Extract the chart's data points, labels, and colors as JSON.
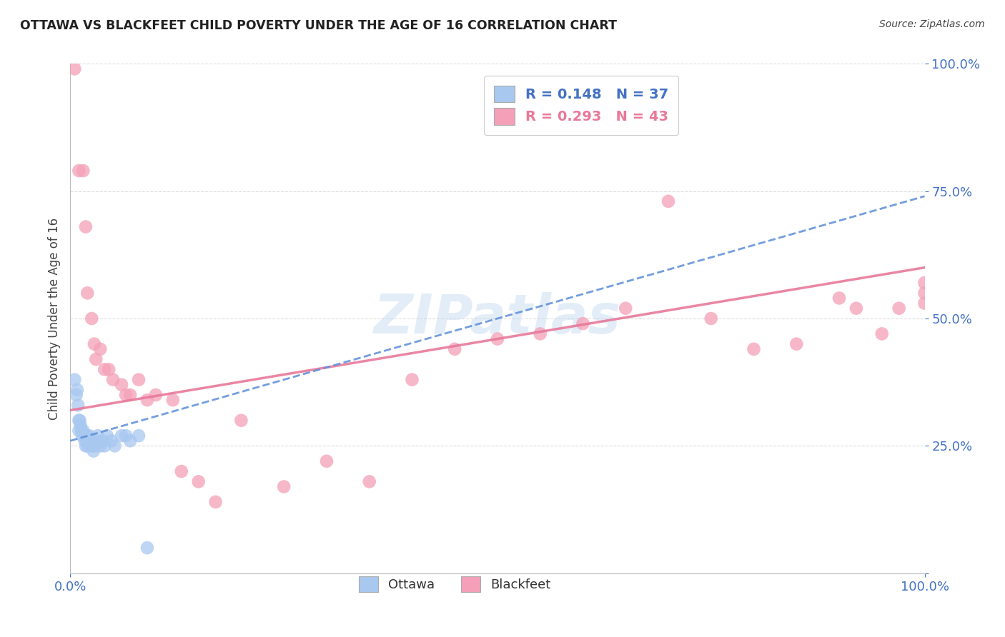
{
  "title": "OTTAWA VS BLACKFEET CHILD POVERTY UNDER THE AGE OF 16 CORRELATION CHART",
  "source": "Source: ZipAtlas.com",
  "ylabel": "Child Poverty Under the Age of 16",
  "watermark": "ZIPatlas",
  "ottawa_color": "#A8C8F0",
  "blackfeet_color": "#F4A0B8",
  "ottawa_line_color": "#5B8DD9",
  "blackfeet_line_color": "#E8799A",
  "ottawa_R": 0.148,
  "ottawa_N": 37,
  "blackfeet_R": 0.293,
  "blackfeet_N": 43,
  "ottawa_scatter_x": [
    0.005,
    0.007,
    0.008,
    0.009,
    0.01,
    0.01,
    0.011,
    0.012,
    0.013,
    0.014,
    0.015,
    0.016,
    0.017,
    0.018,
    0.019,
    0.02,
    0.021,
    0.022,
    0.023,
    0.024,
    0.025,
    0.026,
    0.027,
    0.028,
    0.03,
    0.032,
    0.035,
    0.038,
    0.04,
    0.043,
    0.048,
    0.052,
    0.06,
    0.065,
    0.07,
    0.08,
    0.09
  ],
  "ottawa_scatter_y": [
    0.38,
    0.35,
    0.36,
    0.33,
    0.3,
    0.28,
    0.3,
    0.29,
    0.28,
    0.27,
    0.28,
    0.27,
    0.26,
    0.25,
    0.27,
    0.25,
    0.26,
    0.27,
    0.26,
    0.25,
    0.26,
    0.25,
    0.24,
    0.25,
    0.26,
    0.27,
    0.25,
    0.26,
    0.25,
    0.27,
    0.26,
    0.25,
    0.27,
    0.27,
    0.26,
    0.27,
    0.05
  ],
  "blackfeet_scatter_x": [
    0.005,
    0.01,
    0.015,
    0.018,
    0.02,
    0.025,
    0.028,
    0.03,
    0.035,
    0.04,
    0.045,
    0.05,
    0.06,
    0.065,
    0.07,
    0.08,
    0.09,
    0.1,
    0.12,
    0.13,
    0.15,
    0.17,
    0.2,
    0.25,
    0.3,
    0.35,
    0.4,
    0.45,
    0.5,
    0.55,
    0.6,
    0.65,
    0.7,
    0.75,
    0.8,
    0.85,
    0.9,
    0.92,
    0.95,
    0.97,
    1.0,
    1.0,
    1.0
  ],
  "blackfeet_scatter_y": [
    0.99,
    0.79,
    0.79,
    0.68,
    0.55,
    0.5,
    0.45,
    0.42,
    0.44,
    0.4,
    0.4,
    0.38,
    0.37,
    0.35,
    0.35,
    0.38,
    0.34,
    0.35,
    0.34,
    0.2,
    0.18,
    0.14,
    0.3,
    0.17,
    0.22,
    0.18,
    0.38,
    0.44,
    0.46,
    0.47,
    0.49,
    0.52,
    0.73,
    0.5,
    0.44,
    0.45,
    0.54,
    0.52,
    0.47,
    0.52,
    0.55,
    0.53,
    0.57
  ],
  "background_color": "#FFFFFF",
  "grid_color": "#DDDDDD",
  "tick_color": "#4472C4",
  "blackfeet_line_intercept": 0.32,
  "blackfeet_line_slope": 0.28,
  "ottawa_line_intercept": 0.26,
  "ottawa_line_slope": 0.48
}
